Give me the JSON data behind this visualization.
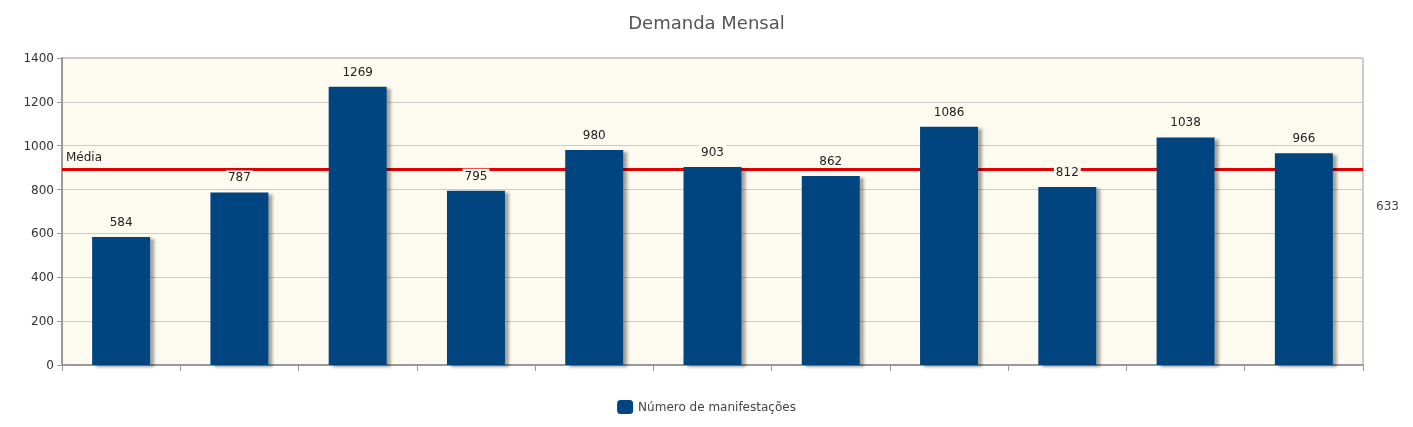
{
  "chart_data": {
    "type": "bar",
    "title": "Demanda Mensal",
    "categories": [
      null,
      null,
      null,
      null,
      null,
      null,
      null,
      null,
      null,
      null,
      null
    ],
    "series": [
      {
        "name": "Número de manifestações",
        "color": "#00457f",
        "values": [
          584,
          787,
          1269,
          795,
          980,
          903,
          862,
          1086,
          812,
          1038,
          966
        ]
      }
    ],
    "data_labels": true,
    "ylim": [
      0,
      1400
    ],
    "yticks": [
      0,
      200,
      400,
      600,
      800,
      1000,
      1200,
      1400
    ],
    "ref_lines": [
      {
        "axis": "y",
        "value": 893,
        "label": "Média",
        "color": "#e00000"
      }
    ],
    "annotations": [
      "633"
    ],
    "grid": "y",
    "legend": "bottom"
  }
}
